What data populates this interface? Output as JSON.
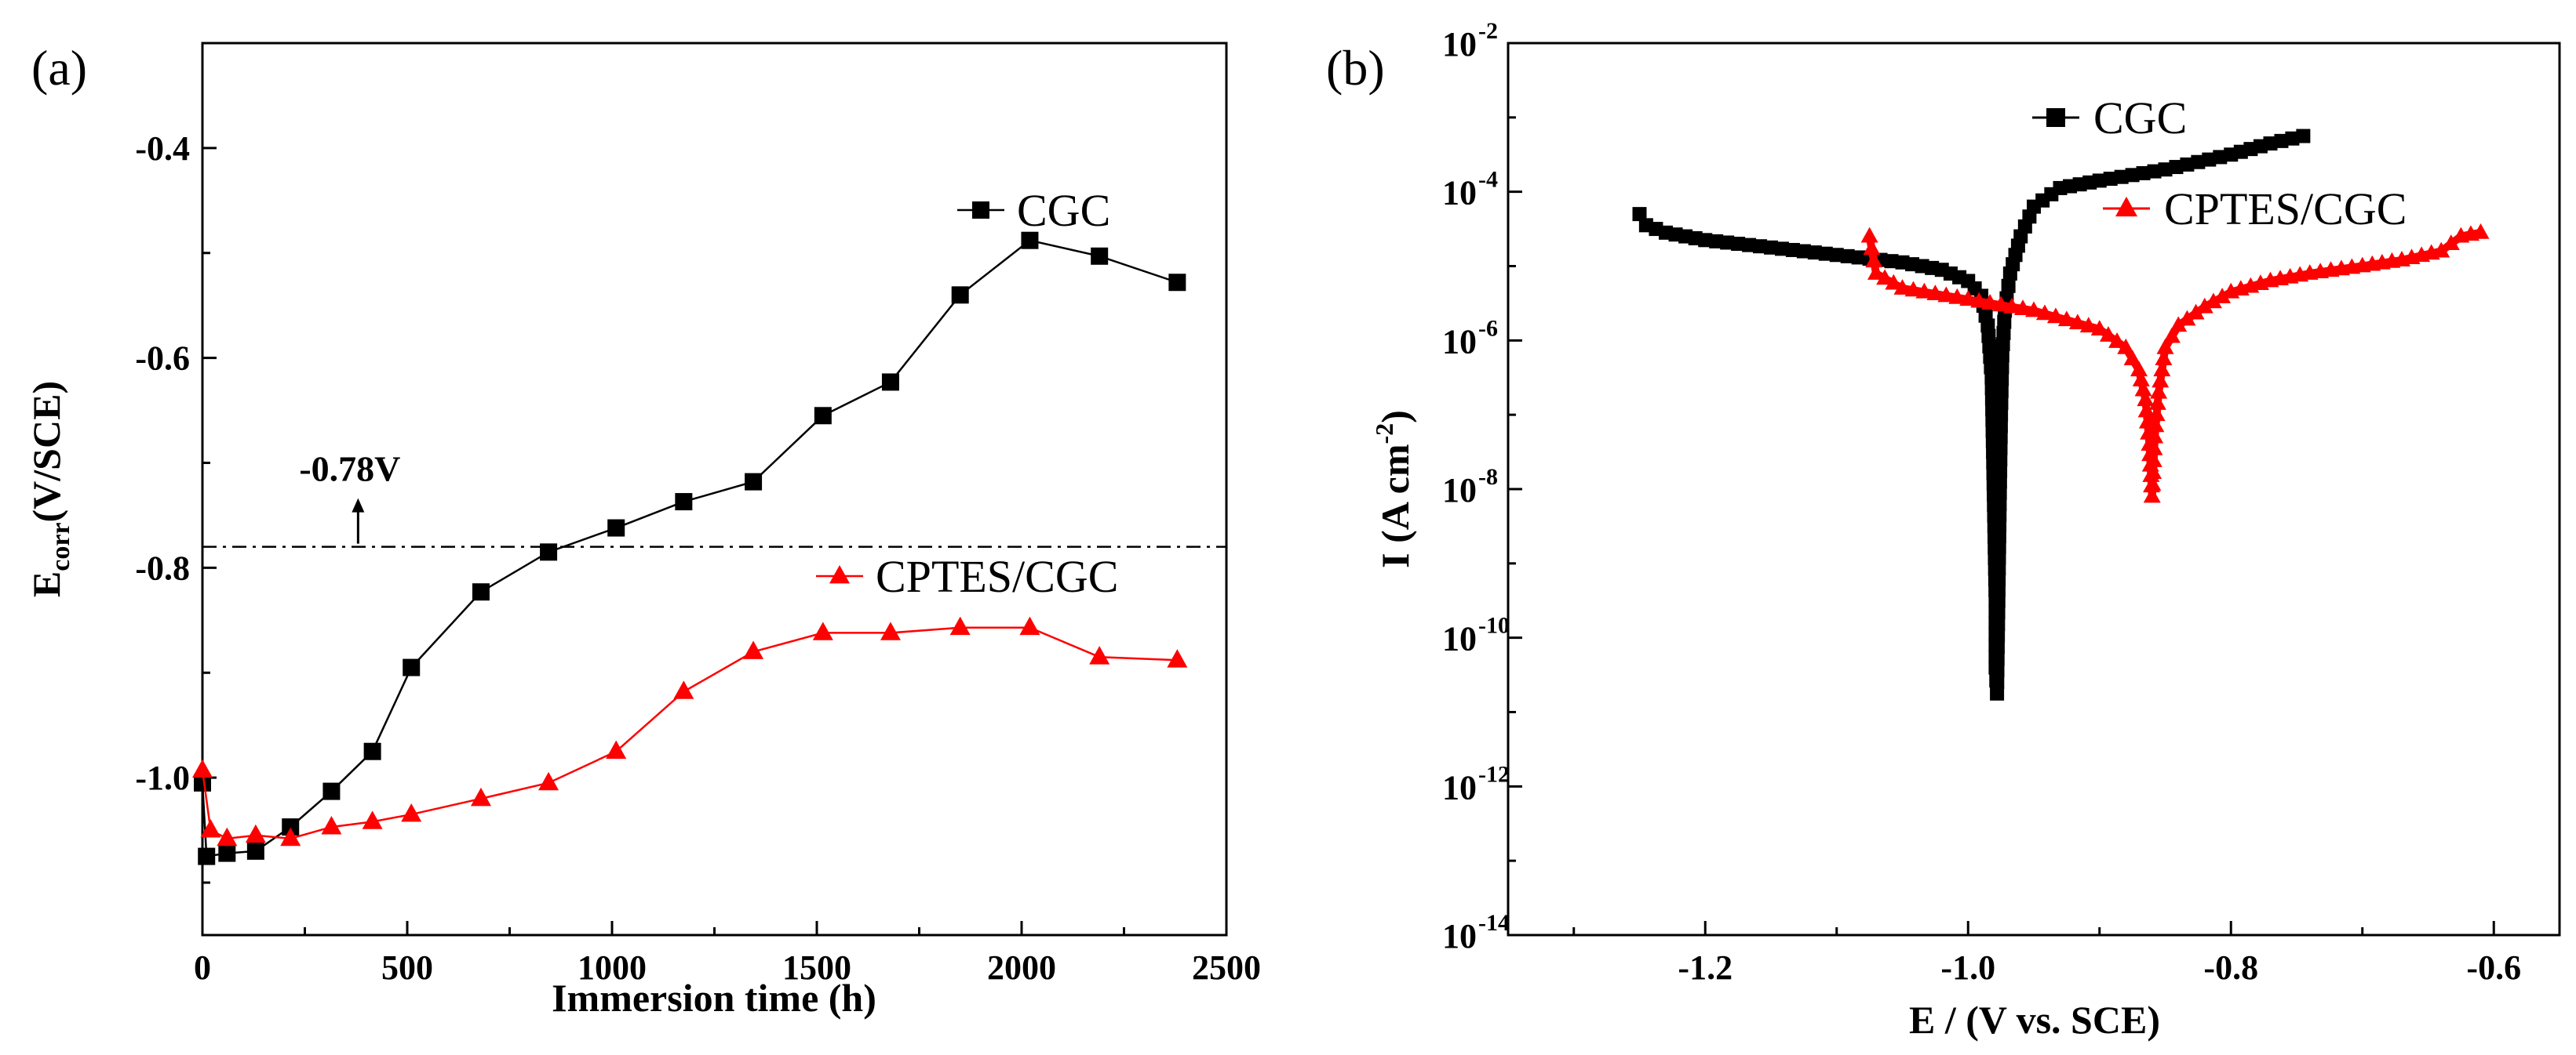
{
  "chart_data": [
    {
      "type": "line",
      "panel_label": "(a)",
      "title": "",
      "xlabel": "Immersion time (h)",
      "ylabel_main": "E",
      "ylabel_sub": "corr",
      "ylabel_rest": "(V/SCE)",
      "xlim": [
        0,
        2500
      ],
      "ylim": [
        -1.15,
        -0.3
      ],
      "xticks": [
        0,
        500,
        1000,
        1500,
        2000,
        2500
      ],
      "xtick_labels": [
        "0",
        "500",
        "1000",
        "1500",
        "2000",
        "2500"
      ],
      "yticks": [
        -1.0,
        -0.8,
        -0.6,
        -0.4
      ],
      "ytick_labels": [
        "-1.0",
        "-0.8",
        "-0.6",
        "-0.4"
      ],
      "legend_position": "right",
      "series": [
        {
          "name": "CGC",
          "color": "#000000",
          "marker": "square",
          "x": [
            0,
            10,
            60,
            130,
            215,
            315,
            415,
            510,
            680,
            845,
            1010,
            1175,
            1345,
            1515,
            1680,
            1850,
            2020,
            2190,
            2380
          ],
          "y": [
            -1.005,
            -1.075,
            -1.072,
            -1.07,
            -1.047,
            -1.013,
            -0.975,
            -0.895,
            -0.823,
            -0.785,
            -0.762,
            -0.737,
            -0.718,
            -0.655,
            -0.623,
            -0.54,
            -0.488,
            -0.503,
            -0.528
          ]
        },
        {
          "name": "CPTES/CGC",
          "color": "#ff0000",
          "marker": "triangle",
          "x": [
            0,
            20,
            60,
            130,
            215,
            315,
            415,
            510,
            680,
            845,
            1010,
            1175,
            1345,
            1515,
            1680,
            1850,
            2020,
            2190,
            2380
          ],
          "y": [
            -0.993,
            -1.05,
            -1.058,
            -1.055,
            -1.058,
            -1.047,
            -1.042,
            -1.035,
            -1.02,
            -1.005,
            -0.975,
            -0.918,
            -0.88,
            -0.862,
            -0.862,
            -0.857,
            -0.857,
            -0.885,
            -0.888
          ]
        }
      ],
      "reference_line": {
        "y": -0.78,
        "label": "-0.78V",
        "arrow_x": 380
      }
    },
    {
      "type": "line",
      "panel_label": "(b)",
      "title": "",
      "xlabel": "E / (V vs. SCE)",
      "ylabel_main": "I (A cm",
      "ylabel_sup": "-2",
      "ylabel_close": ")",
      "xlim": [
        -1.35,
        -0.55
      ],
      "y_log10_lim": [
        -14,
        -2
      ],
      "yscale": "log",
      "xticks": [
        -1.2,
        -1.0,
        -0.8,
        -0.6
      ],
      "xtick_labels": [
        "-1.2",
        "-1.0",
        "-0.8",
        "-0.6"
      ],
      "yticks_exp": [
        -14,
        -12,
        -10,
        -8,
        -6,
        -4,
        -2
      ],
      "ytick_base": "10",
      "ytick_exponents": [
        "-14",
        "-12",
        "-10",
        "-8",
        "-6",
        "-4",
        "-2"
      ],
      "legend_position": "top-right",
      "series": [
        {
          "name": "CGC",
          "color": "#000000",
          "marker": "square",
          "log10_branch_cathodic": [
            [
              -1.25,
              -4.3
            ],
            [
              -1.245,
              -4.45
            ],
            [
              -1.23,
              -4.55
            ],
            [
              -1.2,
              -4.65
            ],
            [
              -1.15,
              -4.75
            ],
            [
              -1.1,
              -4.85
            ],
            [
              -1.05,
              -4.95
            ],
            [
              -1.02,
              -5.05
            ],
            [
              -1.0,
              -5.2
            ],
            [
              -0.99,
              -5.4
            ],
            [
              -0.985,
              -5.8
            ],
            [
              -0.982,
              -6.5
            ],
            [
              -0.981,
              -7.5
            ],
            [
              -0.98,
              -8.5
            ],
            [
              -0.979,
              -9.5
            ],
            [
              -0.979,
              -10.4
            ],
            [
              -0.978,
              -10.75
            ]
          ],
          "log10_branch_anodic": [
            [
              -0.978,
              -10.75
            ],
            [
              -0.977,
              -9.5
            ],
            [
              -0.976,
              -8.2
            ],
            [
              -0.975,
              -7.0
            ],
            [
              -0.974,
              -6.2
            ],
            [
              -0.972,
              -5.6
            ],
            [
              -0.968,
              -5.1
            ],
            [
              -0.96,
              -4.6
            ],
            [
              -0.95,
              -4.2
            ],
            [
              -0.93,
              -3.95
            ],
            [
              -0.9,
              -3.85
            ],
            [
              -0.85,
              -3.7
            ],
            [
              -0.8,
              -3.5
            ],
            [
              -0.77,
              -3.35
            ],
            [
              -0.745,
              -3.25
            ]
          ]
        },
        {
          "name": "CPTES/CGC",
          "color": "#ff0000",
          "marker": "triangle",
          "log10_branch_cathodic": [
            [
              -1.075,
              -4.6
            ],
            [
              -1.07,
              -5.1
            ],
            [
              -1.05,
              -5.3
            ],
            [
              -1.0,
              -5.45
            ],
            [
              -0.95,
              -5.6
            ],
            [
              -0.9,
              -5.85
            ],
            [
              -0.88,
              -6.1
            ],
            [
              -0.87,
              -6.4
            ],
            [
              -0.865,
              -6.8
            ],
            [
              -0.862,
              -7.4
            ],
            [
              -0.86,
              -8.1
            ]
          ],
          "log10_branch_anodic": [
            [
              -0.86,
              -8.1
            ],
            [
              -0.858,
              -7.3
            ],
            [
              -0.855,
              -6.7
            ],
            [
              -0.85,
              -6.1
            ],
            [
              -0.84,
              -5.8
            ],
            [
              -0.82,
              -5.55
            ],
            [
              -0.8,
              -5.35
            ],
            [
              -0.77,
              -5.2
            ],
            [
              -0.74,
              -5.1
            ],
            [
              -0.7,
              -5.0
            ],
            [
              -0.67,
              -4.92
            ],
            [
              -0.64,
              -4.8
            ],
            [
              -0.625,
              -4.6
            ],
            [
              -0.61,
              -4.55
            ]
          ]
        }
      ]
    }
  ]
}
